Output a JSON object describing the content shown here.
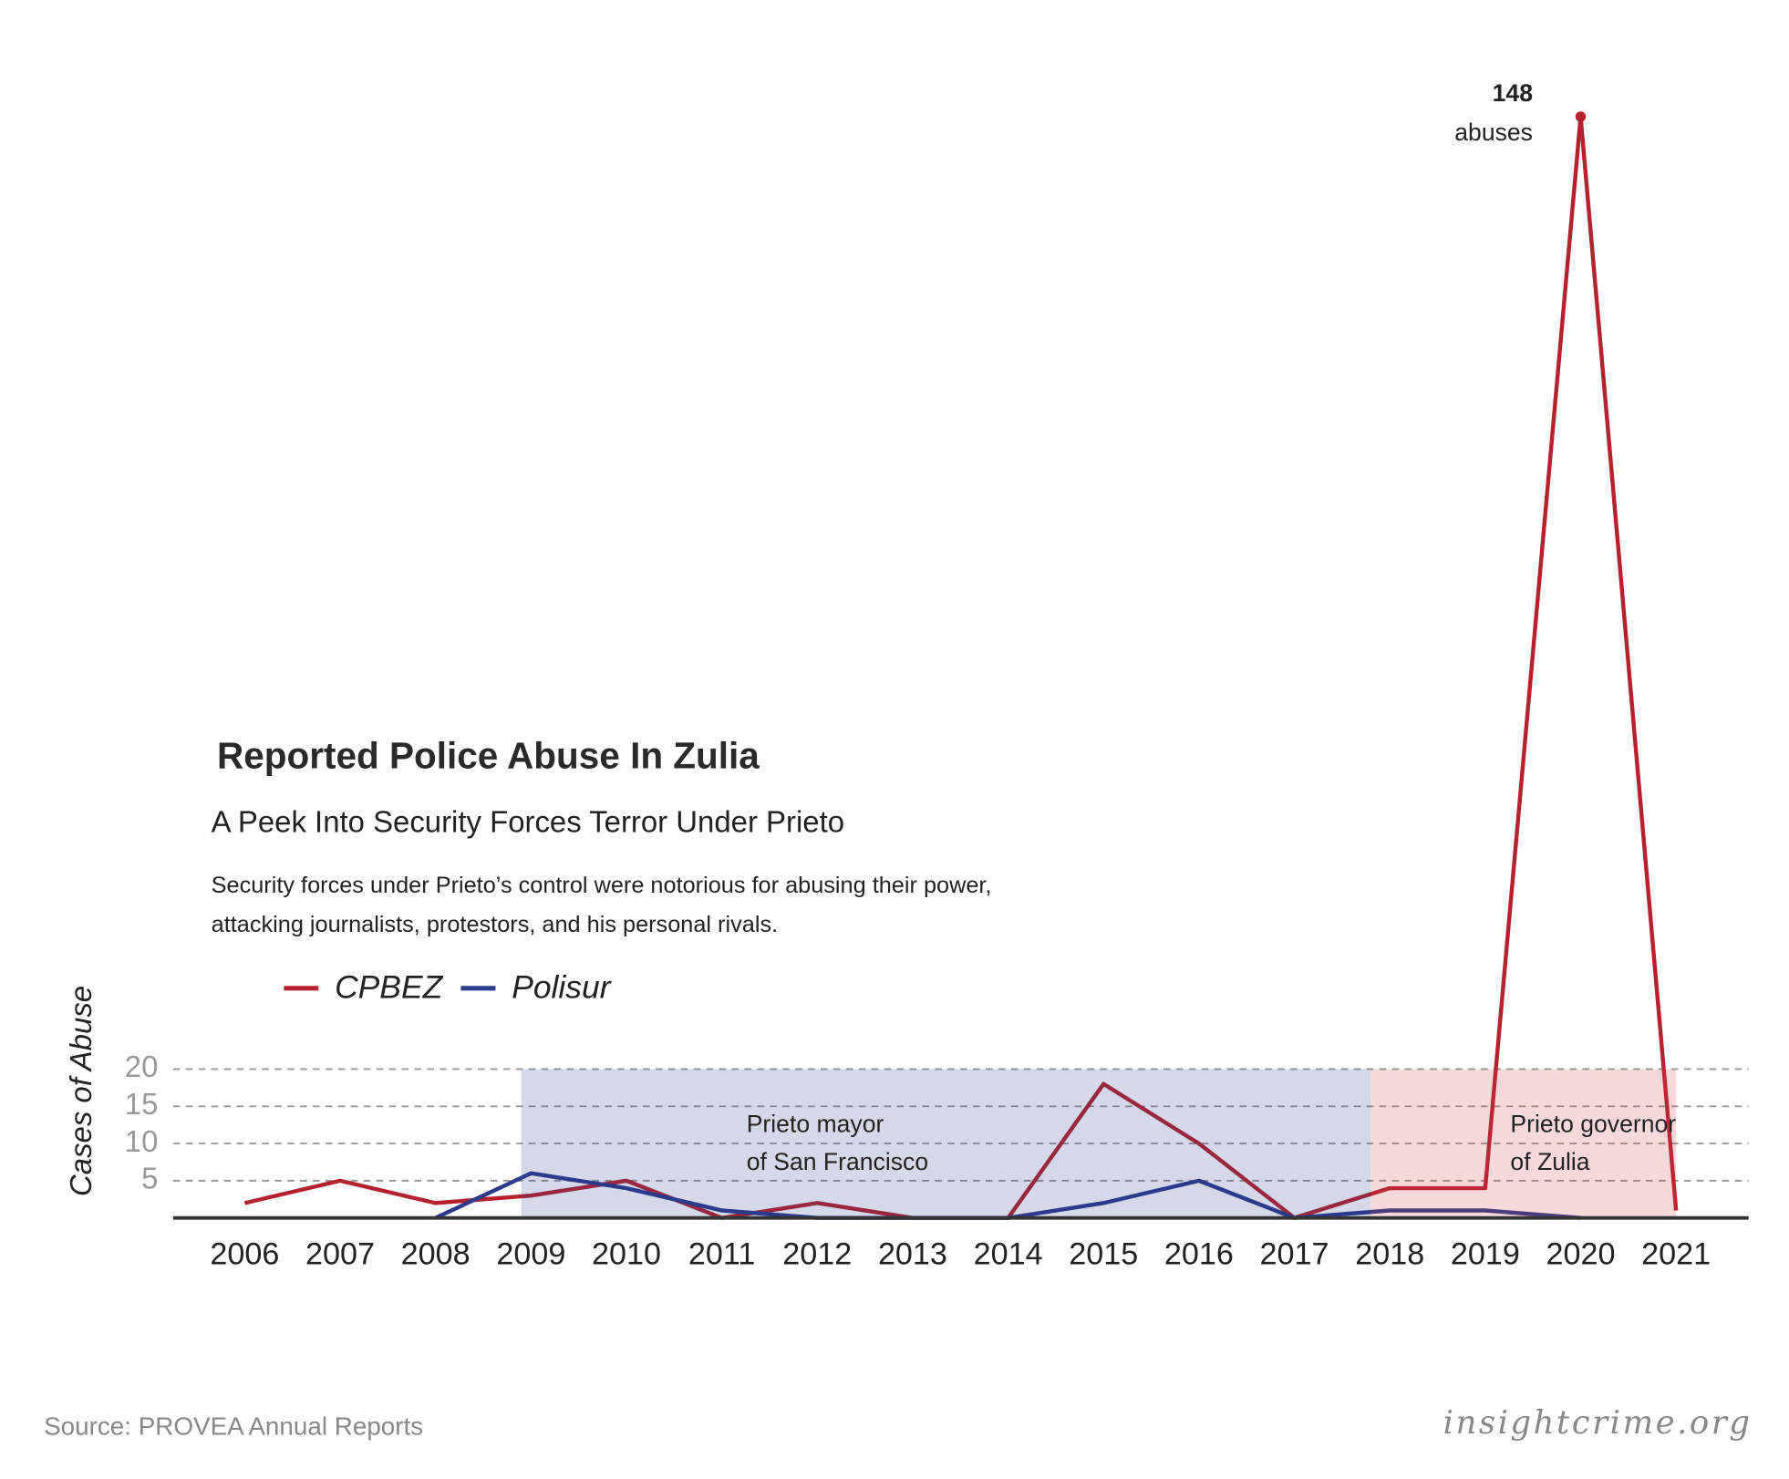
{
  "chart_data": {
    "type": "line",
    "title": "Reported Police Abuse In Zulia",
    "subtitle": "A Peek Into Security Forces Terror Under Prieto",
    "description": [
      "Security forces under Prieto’s control were notorious for abusing their power,",
      "attacking journalists, protestors, and his personal rivals."
    ],
    "y_label": "Cases of Abuse",
    "x": [
      2006,
      2007,
      2008,
      2009,
      2010,
      2011,
      2012,
      2013,
      2014,
      2015,
      2016,
      2017,
      2018,
      2019,
      2020,
      2021
    ],
    "xticks": [
      2006,
      2007,
      2008,
      2009,
      2010,
      2011,
      2012,
      2013,
      2014,
      2015,
      2016,
      2017,
      2018,
      2019,
      2020,
      2021
    ],
    "xlim": [
      2005.25,
      2021.76
    ],
    "series": [
      {
        "name": "CPBEZ",
        "color": "#b5222d",
        "values": [
          2,
          5,
          2,
          3,
          5,
          0,
          2,
          0,
          0,
          18,
          10,
          0,
          4,
          4,
          148,
          1
        ]
      },
      {
        "name": "Polisur",
        "color": "#2b3a8c",
        "values": [
          null,
          null,
          0,
          6,
          4,
          1,
          0,
          0,
          0,
          2,
          5,
          0,
          1,
          1,
          0,
          null
        ]
      }
    ],
    "ylim": [
      0,
      150
    ],
    "yticks": [
      5,
      10,
      15,
      20
    ],
    "grid": true,
    "spans": [
      {
        "lines": [
          "Prieto mayor",
          "of San Francisco"
        ],
        "start": 2008.9,
        "end": 2017.8,
        "top": 20,
        "color": "#2b3a8c"
      },
      {
        "lines": [
          "Prieto governor",
          "of Zulia"
        ],
        "start": 2017.8,
        "end": 2021,
        "top": 20,
        "color": "#d9434e"
      }
    ],
    "annotation": {
      "lines": [
        "148",
        "abuses"
      ],
      "series": 0,
      "index": 14
    },
    "source": "Source: PROVEA Annual Reports",
    "brand": "insightcrime.org"
  }
}
